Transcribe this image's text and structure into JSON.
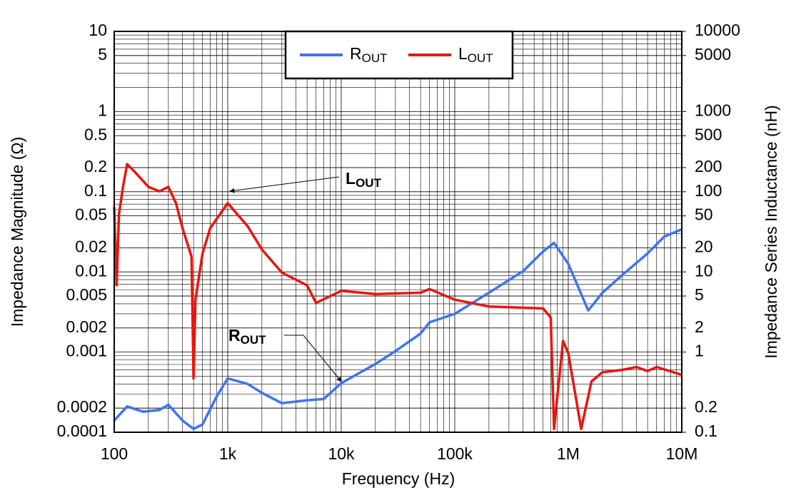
{
  "chart_data": {
    "type": "line",
    "x_label": "Frequency (Hz)",
    "y_label": "Impedance Magnitude (Ω)",
    "y2_label": "Impedance Series Inductance (nH)",
    "log_x": true,
    "log_y": true,
    "grid": true,
    "legend": "top",
    "xlim": [
      100,
      10000000
    ],
    "xticks": [
      100,
      {
        "value": 1000,
        "label": "1k"
      },
      {
        "value": 10000,
        "label": "10k"
      },
      {
        "value": 100000,
        "label": "100k"
      },
      {
        "value": 1000000,
        "label": "1M"
      },
      {
        "value": 10000000,
        "label": "10M"
      }
    ],
    "ylim": [
      0.0001,
      10
    ],
    "yticks": [
      10,
      5,
      1,
      0.5,
      0.2,
      0.1,
      0.05,
      0.02,
      0.01,
      0.005,
      0.002,
      0.001,
      0.0002,
      0.0001
    ],
    "y2lim": [
      0.1,
      10000
    ],
    "y2ticks": [
      10000,
      5000,
      1000,
      500,
      200,
      100,
      50,
      20,
      10,
      5,
      2,
      1,
      0.2,
      0.1
    ],
    "series": [
      {
        "name": "ROUT",
        "color": "#3f74ee",
        "x": [
          100,
          130,
          180,
          250,
          300,
          400,
          500,
          600,
          800,
          1000,
          1500,
          2000,
          3000,
          5000,
          7000,
          10000,
          20000,
          30000,
          50000,
          60000,
          100000,
          200000,
          400000,
          600000,
          750000,
          1000000,
          1500000,
          2000000,
          3000000,
          5000000,
          7000000,
          10000000
        ],
        "values": [
          0.00014,
          0.00021,
          0.00018,
          0.00019,
          0.00022,
          0.00014,
          0.00011,
          0.000125,
          0.00028,
          0.00047,
          0.0004,
          0.00031,
          0.00023,
          0.00025,
          0.00026,
          0.00041,
          0.00071,
          0.00103,
          0.0017,
          0.00235,
          0.003,
          0.0055,
          0.0102,
          0.018,
          0.023,
          0.0126,
          0.0033,
          0.0055,
          0.0092,
          0.017,
          0.0275,
          0.034
        ]
      },
      {
        "name": "LOUT",
        "color": "#e8160e",
        "axis": "y2",
        "x": [
          100,
          105,
          110,
          120,
          130,
          150,
          200,
          250,
          300,
          350,
          400,
          480,
          500,
          520,
          600,
          700,
          1000,
          1500,
          2000,
          3000,
          5000,
          6000,
          10000,
          20000,
          50000,
          60000,
          100000,
          200000,
          600000,
          700000,
          750000,
          900000,
          1000000,
          1300000,
          1600000,
          2000000,
          3000000,
          4000000,
          5000000,
          6000000,
          10000000
        ],
        "values": [
          65,
          6.8,
          52,
          120,
          221,
          180,
          115,
          101,
          115,
          72,
          35,
          15.5,
          0.47,
          4.5,
          17,
          35,
          72,
          37,
          19,
          9.8,
          6.8,
          4.1,
          5.8,
          5.3,
          5.5,
          6.1,
          4.5,
          3.7,
          3.5,
          2.7,
          0.11,
          1.38,
          0.97,
          0.11,
          0.43,
          0.56,
          0.6,
          0.65,
          0.58,
          0.65,
          0.52
        ]
      }
    ],
    "annotations": [
      {
        "text": "LOUT"
      },
      {
        "text": "ROUT"
      }
    ]
  }
}
